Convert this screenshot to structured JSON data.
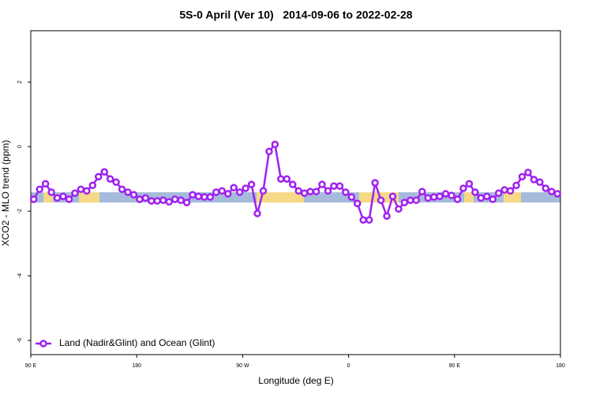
{
  "chart_data": {
    "type": "line",
    "title": "5S-0 April (Ver 10)   2014-09-06 to 2022-02-28",
    "x_label": "Longitude (deg E)",
    "y_label": "XCO2 - MLO trend (ppm)",
    "x": [
      92.5,
      97.5,
      102.5,
      107.5,
      112.5,
      117.5,
      122.5,
      127.5,
      132.5,
      137.5,
      142.5,
      147.5,
      152.5,
      157.5,
      162.5,
      167.5,
      172.5,
      177.5,
      182.5,
      187.5,
      192.5,
      197.5,
      202.5,
      207.5,
      212.5,
      217.5,
      222.5,
      227.5,
      232.5,
      237.5,
      242.5,
      247.5,
      252.5,
      257.5,
      262.5,
      267.5,
      272.5,
      277.5,
      282.5,
      287.5,
      292.5,
      297.5,
      302.5,
      307.5,
      312.5,
      317.5,
      322.5,
      327.5,
      332.5,
      337.5,
      342.5,
      347.5,
      352.5,
      357.5,
      362.5,
      367.5,
      372.5,
      377.5,
      382.5,
      387.5,
      392.5,
      397.5,
      402.5,
      407.5,
      412.5,
      417.5,
      422.5,
      427.5,
      432.5,
      437.5,
      442.5,
      447.5,
      452.5,
      457.5,
      462.5,
      467.5,
      472.5,
      477.5,
      482.5,
      487.5,
      492.5,
      497.5,
      502.5,
      507.5,
      512.5,
      517.5,
      522.5,
      527.5,
      532.5,
      537.5
    ],
    "series": [
      {
        "name": "Land (Nadir&Glint) and Ocean (Glint)",
        "color": "#a020f0",
        "values": [
          -1.63,
          -1.32,
          -1.15,
          -1.41,
          -1.59,
          -1.54,
          -1.63,
          -1.44,
          -1.32,
          -1.37,
          -1.2,
          -0.93,
          -0.78,
          -1.0,
          -1.1,
          -1.32,
          -1.41,
          -1.49,
          -1.63,
          -1.59,
          -1.68,
          -1.68,
          -1.66,
          -1.71,
          -1.63,
          -1.66,
          -1.73,
          -1.49,
          -1.54,
          -1.56,
          -1.56,
          -1.41,
          -1.37,
          -1.46,
          -1.27,
          -1.41,
          -1.29,
          -1.17,
          -2.07,
          -1.37,
          -0.15,
          0.07,
          -1.0,
          -1.0,
          -1.17,
          -1.37,
          -1.44,
          -1.39,
          -1.39,
          -1.17,
          -1.37,
          -1.22,
          -1.22,
          -1.41,
          -1.56,
          -1.76,
          -2.27,
          -2.27,
          -1.12,
          -1.66,
          -2.15,
          -1.54,
          -1.93,
          -1.73,
          -1.66,
          -1.66,
          -1.39,
          -1.59,
          -1.56,
          -1.54,
          -1.46,
          -1.51,
          -1.63,
          -1.29,
          -1.15,
          -1.41,
          -1.59,
          -1.54,
          -1.63,
          -1.44,
          -1.34,
          -1.37,
          -1.2,
          -0.93,
          -0.8,
          -1.02,
          -1.1,
          -1.29,
          -1.39,
          -1.46
        ]
      }
    ],
    "xlim": [
      90,
      540
    ],
    "xticks": [
      {
        "value": 90,
        "label": "90 E"
      },
      180,
      {
        "value": 270,
        "label": "90 W"
      },
      {
        "value": 360,
        "label": "0"
      },
      {
        "value": 450,
        "label": "90 E"
      },
      {
        "value": 540,
        "label": "180"
      }
    ],
    "ylim": [
      -6.44,
      3.59
    ],
    "yticks": [
      -6,
      -4,
      -2,
      0,
      2
    ],
    "legend": "bottom-left"
  }
}
